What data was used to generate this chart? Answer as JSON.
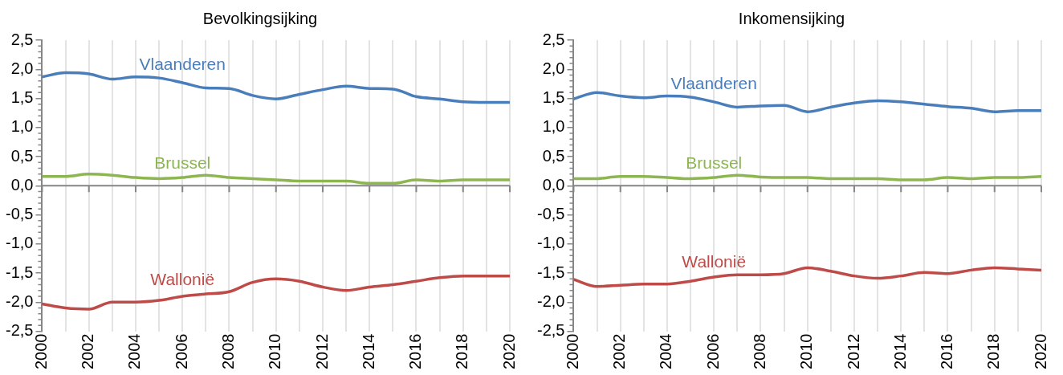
{
  "chart_data": [
    {
      "type": "line",
      "title": "Bevolkingsijking",
      "x": [
        2000,
        2001,
        2002,
        2003,
        2004,
        2005,
        2006,
        2007,
        2008,
        2009,
        2010,
        2011,
        2012,
        2013,
        2014,
        2015,
        2016,
        2017,
        2018,
        2019,
        2020
      ],
      "series": [
        {
          "name": "Vlaanderen",
          "color": "#4a7ebb",
          "values": [
            1.87,
            1.94,
            1.92,
            1.83,
            1.87,
            1.85,
            1.77,
            1.68,
            1.67,
            1.55,
            1.49,
            1.57,
            1.65,
            1.71,
            1.67,
            1.66,
            1.53,
            1.49,
            1.44,
            1.43,
            1.43
          ]
        },
        {
          "name": "Brussel",
          "color": "#8db651",
          "values": [
            0.16,
            0.16,
            0.2,
            0.18,
            0.14,
            0.12,
            0.14,
            0.18,
            0.14,
            0.12,
            0.1,
            0.08,
            0.08,
            0.08,
            0.04,
            0.04,
            0.1,
            0.08,
            0.1,
            0.1,
            0.1
          ]
        },
        {
          "name": "Wallonië",
          "color": "#be4b48",
          "values": [
            -2.03,
            -2.1,
            -2.12,
            -2.0,
            -2.0,
            -1.97,
            -1.9,
            -1.86,
            -1.82,
            -1.66,
            -1.6,
            -1.64,
            -1.74,
            -1.8,
            -1.74,
            -1.7,
            -1.64,
            -1.58,
            -1.55,
            -1.55,
            -1.55
          ]
        }
      ],
      "xlim": [
        2000,
        2020
      ],
      "xticks": [
        2000,
        {
          "value": 2001,
          "label": null
        },
        2002,
        {
          "value": 2003,
          "label": null
        },
        2004,
        {
          "value": 2005,
          "label": null
        },
        2006,
        {
          "value": 2007,
          "label": null
        },
        2008,
        {
          "value": 2009,
          "label": null
        },
        2010,
        {
          "value": 2011,
          "label": null
        },
        2012,
        {
          "value": 2013,
          "label": null
        },
        2014,
        {
          "value": 2015,
          "label": null
        },
        2016,
        {
          "value": 2017,
          "label": null
        },
        2018,
        {
          "value": 2019,
          "label": null
        },
        2020
      ],
      "ylim": [
        -2.5,
        2.5
      ],
      "yticks": [
        {
          "value": -2.5,
          "label": "-2,5"
        },
        {
          "value": -2,
          "label": "-2,0"
        },
        {
          "value": -1.5,
          "label": "-1,5"
        },
        {
          "value": -1,
          "label": "-1,0"
        },
        {
          "value": -0.5,
          "label": "-0,5"
        },
        {
          "value": 0,
          "label": "0,0"
        },
        {
          "value": 0.5,
          "label": "0,5"
        },
        {
          "value": 1,
          "label": "1,0"
        },
        {
          "value": 1.5,
          "label": "1,5"
        },
        {
          "value": 2,
          "label": "2,0"
        },
        {
          "value": 2.5,
          "label": "2,5"
        }
      ],
      "grid": "x",
      "legend": false,
      "marker": "none",
      "line_style": "solid"
    },
    {
      "type": "line",
      "title": "Inkomensijking",
      "x": [
        2000,
        2001,
        2002,
        2003,
        2004,
        2005,
        2006,
        2007,
        2008,
        2009,
        2010,
        2011,
        2012,
        2013,
        2014,
        2015,
        2016,
        2017,
        2018,
        2019,
        2020
      ],
      "series": [
        {
          "name": "Vlaanderen",
          "color": "#4a7ebb",
          "values": [
            1.49,
            1.6,
            1.54,
            1.51,
            1.54,
            1.52,
            1.44,
            1.35,
            1.37,
            1.38,
            1.27,
            1.35,
            1.42,
            1.46,
            1.44,
            1.4,
            1.36,
            1.33,
            1.27,
            1.29,
            1.29
          ]
        },
        {
          "name": "Brussel",
          "color": "#8db651",
          "values": [
            0.12,
            0.12,
            0.16,
            0.16,
            0.14,
            0.12,
            0.14,
            0.18,
            0.15,
            0.14,
            0.14,
            0.12,
            0.12,
            0.12,
            0.1,
            0.1,
            0.14,
            0.12,
            0.14,
            0.14,
            0.16
          ]
        },
        {
          "name": "Wallonië",
          "color": "#be4b48",
          "values": [
            -1.61,
            -1.73,
            -1.71,
            -1.69,
            -1.69,
            -1.64,
            -1.57,
            -1.53,
            -1.53,
            -1.51,
            -1.41,
            -1.47,
            -1.55,
            -1.59,
            -1.55,
            -1.49,
            -1.51,
            -1.45,
            -1.41,
            -1.43,
            -1.45
          ]
        }
      ],
      "xlim": [
        2000,
        2020
      ],
      "xticks": [
        2000,
        {
          "value": 2001,
          "label": null
        },
        2002,
        {
          "value": 2003,
          "label": null
        },
        2004,
        {
          "value": 2005,
          "label": null
        },
        2006,
        {
          "value": 2007,
          "label": null
        },
        2008,
        {
          "value": 2009,
          "label": null
        },
        2010,
        {
          "value": 2011,
          "label": null
        },
        2012,
        {
          "value": 2013,
          "label": null
        },
        2014,
        {
          "value": 2015,
          "label": null
        },
        2016,
        {
          "value": 2017,
          "label": null
        },
        2018,
        {
          "value": 2019,
          "label": null
        },
        2020
      ],
      "ylim": [
        -2.5,
        2.5
      ],
      "yticks": [
        {
          "value": -2.5,
          "label": "-2,5"
        },
        {
          "value": -2,
          "label": "-2,0"
        },
        {
          "value": -1.5,
          "label": "-1,5"
        },
        {
          "value": -1,
          "label": "-1,0"
        },
        {
          "value": -0.5,
          "label": "-0,5"
        },
        {
          "value": 0,
          "label": "0,0"
        },
        {
          "value": 0.5,
          "label": "0,5"
        },
        {
          "value": 1,
          "label": "1,0"
        },
        {
          "value": 1.5,
          "label": "1,5"
        },
        {
          "value": 2,
          "label": "2,0"
        },
        {
          "value": 2.5,
          "label": "2,5"
        }
      ],
      "grid": "x",
      "legend": false,
      "marker": "none",
      "line_style": "solid"
    }
  ]
}
